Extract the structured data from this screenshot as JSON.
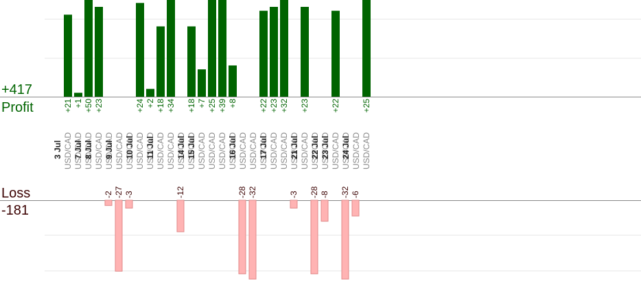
{
  "summary": {
    "profit_total": "+417",
    "profit_label": "Profit",
    "loss_label": "Loss",
    "loss_total": "-181"
  },
  "colors": {
    "profit_bar": "#006400",
    "profit_text": "#006400",
    "loss_bar": "#ffb3b3",
    "loss_bar_border": "#e08a8a",
    "loss_text": "#3a0000",
    "date_text": "#222222",
    "pair_text": "#888888",
    "grid": "#e6e6e6",
    "axis": "#888888"
  },
  "chart_data": {
    "type": "bar",
    "dates": [
      {
        "label": "3 Jul",
        "trades": [
          {
            "pair": "USD/CAD",
            "value": 21
          },
          {
            "pair": "USD/CAD",
            "value": 1
          }
        ]
      },
      {
        "label": "",
        "trades": []
      },
      {
        "label": "7 Jul",
        "trades": [
          {
            "pair": "USD/CAD",
            "value": 50
          }
        ]
      },
      {
        "label": "",
        "trades": []
      },
      {
        "label": "8 Jul",
        "trades": [
          {
            "pair": "USD/CAD",
            "value": 23
          },
          {
            "pair": "USD/CAD",
            "value": -2
          }
        ]
      },
      {
        "label": "",
        "trades": []
      },
      {
        "label": "9 Jul",
        "trades": [
          {
            "pair": "USD/CAD",
            "value": -27
          },
          {
            "pair": "USD/CAD",
            "value": -3
          }
        ]
      },
      {
        "label": "",
        "trades": []
      },
      {
        "label": "10 Jul",
        "trades": [
          {
            "pair": "USD/CAD",
            "value": 24
          },
          {
            "pair": "USD/CAD",
            "value": 2
          }
        ]
      },
      {
        "label": "",
        "trades": []
      },
      {
        "label": "11 Jul",
        "trades": [
          {
            "pair": "USD/CAD",
            "value": 18
          },
          {
            "pair": "USD/CAD",
            "value": 34
          },
          {
            "pair": "USD/CAD",
            "value": -12
          }
        ]
      },
      {
        "label": "",
        "trades": []
      },
      {
        "label": "14 Jul",
        "trades": [
          {
            "pair": "USD/CAD",
            "value": 18
          }
        ]
      },
      {
        "label": "",
        "trades": []
      },
      {
        "label": "15 Jul",
        "trades": [
          {
            "pair": "USD/CAD",
            "value": 7
          },
          {
            "pair": "USD/CAD",
            "value": 25
          },
          {
            "pair": "USD/CAD",
            "value": 39
          },
          {
            "pair": "USD/CAD",
            "value": 8
          }
        ]
      },
      {
        "label": "",
        "trades": []
      },
      {
        "label": "16 Jul",
        "trades": [
          {
            "pair": "USD/CAD",
            "value": -28
          },
          {
            "pair": "USD/CAD",
            "value": -32
          },
          {
            "pair": "USD/CAD",
            "value": 22
          }
        ]
      },
      {
        "label": "",
        "trades": []
      },
      {
        "label": "17 Jul",
        "trades": [
          {
            "pair": "USD/CAD",
            "value": 23
          },
          {
            "pair": "USD/CAD",
            "value": 32
          },
          {
            "pair": "USD/CAD",
            "value": -3
          }
        ]
      },
      {
        "label": "",
        "trades": []
      },
      {
        "label": "21 Jul",
        "trades": [
          {
            "pair": "USD/CAD",
            "value": 23
          },
          {
            "pair": "USD/CAD",
            "value": -28
          }
        ]
      },
      {
        "label": "",
        "trades": []
      },
      {
        "label": "22 Jul",
        "trades": [
          {
            "pair": "USD/CAD",
            "value": -8
          }
        ]
      },
      {
        "label": "",
        "trades": []
      },
      {
        "label": "23 Jul",
        "trades": [
          {
            "pair": "USD/CAD",
            "value": 22
          },
          {
            "pair": "USD/CAD",
            "value": -32
          }
        ]
      },
      {
        "label": "",
        "trades": []
      },
      {
        "label": "24 Jul",
        "trades": [
          {
            "pair": "USD/CAD",
            "value": -6
          },
          {
            "pair": "USD/CAD",
            "value": 25
          }
        ]
      }
    ],
    "profit_axis_max": 23,
    "loss_axis_max": 30
  }
}
